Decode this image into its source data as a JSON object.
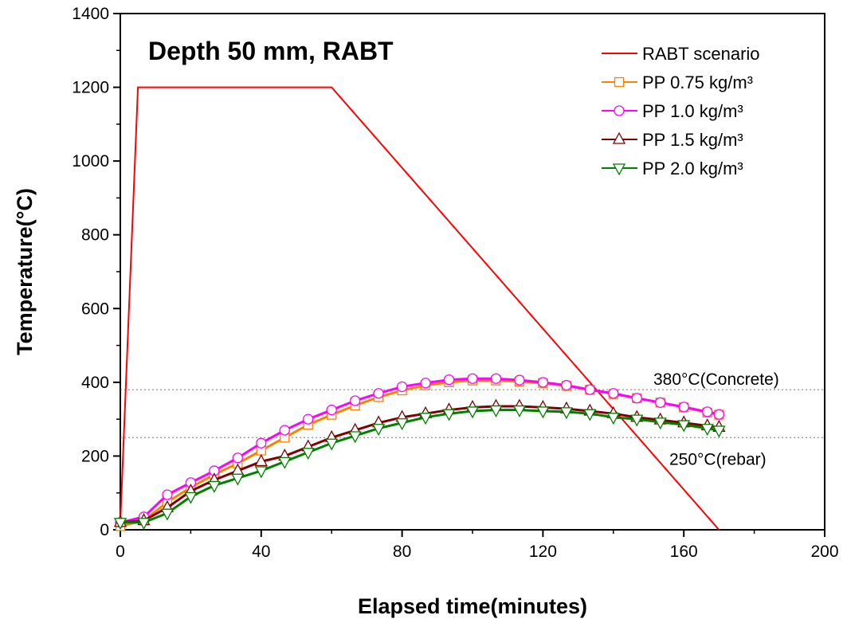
{
  "chart_data": {
    "type": "line",
    "title": "Depth 50 mm, RABT",
    "xlabel": "Elapsed time(minutes)",
    "ylabel": "Temperature(°C)",
    "xlim": [
      0,
      200
    ],
    "ylim": [
      0,
      1400
    ],
    "xticks": [
      "0",
      "40",
      "80",
      "120",
      "160",
      "200"
    ],
    "yticks": [
      "0",
      "200",
      "400",
      "600",
      "800",
      "1000",
      "1200",
      "1400"
    ],
    "legend_position": "top-right",
    "reference_lines": [
      {
        "y": 380,
        "label": "380°C(Concrete)"
      },
      {
        "y": 250,
        "label": "250°C(rebar)"
      }
    ],
    "series": [
      {
        "name": "RABT scenario",
        "color": "#ff0000",
        "marker": "none",
        "x": [
          0,
          5,
          60,
          170
        ],
        "y": [
          20,
          1200,
          1200,
          0
        ]
      },
      {
        "name": "PP 0.75 kg/m³",
        "color": "#ff8000",
        "marker": "square",
        "x": [
          0,
          6.67,
          13.33,
          20,
          26.67,
          33.33,
          40,
          46.67,
          53.33,
          60,
          66.67,
          73.33,
          80,
          86.67,
          93.33,
          100,
          106.67,
          113.33,
          120,
          126.67,
          133.33,
          140,
          146.67,
          153.33,
          160,
          166.67,
          170
        ],
        "y": [
          10,
          25,
          75,
          115,
          150,
          180,
          215,
          250,
          285,
          312,
          337,
          360,
          378,
          392,
          400,
          405,
          405,
          402,
          398,
          390,
          380,
          368,
          357,
          345,
          332,
          318,
          312
        ]
      },
      {
        "name": "PP 1.0 kg/m³",
        "color": "#ff00ff",
        "marker": "circle",
        "x": [
          0,
          6.67,
          13.33,
          20,
          26.67,
          33.33,
          40,
          46.67,
          53.33,
          60,
          66.67,
          73.33,
          80,
          86.67,
          93.33,
          100,
          106.67,
          113.33,
          120,
          126.67,
          133.33,
          140,
          146.67,
          153.33,
          160,
          166.67,
          170
        ],
        "y": [
          20,
          35,
          95,
          128,
          160,
          195,
          235,
          270,
          300,
          325,
          350,
          370,
          388,
          398,
          407,
          410,
          410,
          406,
          400,
          392,
          380,
          370,
          357,
          345,
          333,
          320,
          313
        ]
      },
      {
        "name": "PP 1.5 kg/m³",
        "color": "#800000",
        "marker": "triangle-up",
        "x": [
          0,
          6.67,
          13.33,
          20,
          26.67,
          33.33,
          40,
          46.67,
          53.33,
          60,
          66.67,
          73.33,
          80,
          86.67,
          93.33,
          100,
          106.67,
          113.33,
          120,
          126.67,
          133.33,
          140,
          146.67,
          153.33,
          160,
          166.67,
          170
        ],
        "y": [
          20,
          25,
          60,
          105,
          135,
          160,
          185,
          200,
          225,
          250,
          270,
          290,
          305,
          315,
          325,
          332,
          335,
          335,
          332,
          328,
          322,
          315,
          305,
          298,
          290,
          282,
          278
        ]
      },
      {
        "name": "PP 2.0 kg/m³",
        "color": "#008000",
        "marker": "triangle-down",
        "x": [
          0,
          6.67,
          13.33,
          20,
          26.67,
          33.33,
          40,
          46.67,
          53.33,
          60,
          66.67,
          73.33,
          80,
          86.67,
          93.33,
          100,
          106.67,
          113.33,
          120,
          126.67,
          133.33,
          140,
          146.67,
          153.33,
          160,
          166.67,
          170
        ],
        "y": [
          20,
          20,
          45,
          90,
          120,
          140,
          160,
          185,
          210,
          235,
          255,
          275,
          290,
          305,
          315,
          322,
          325,
          325,
          322,
          320,
          315,
          305,
          300,
          292,
          285,
          275,
          270
        ]
      }
    ]
  }
}
